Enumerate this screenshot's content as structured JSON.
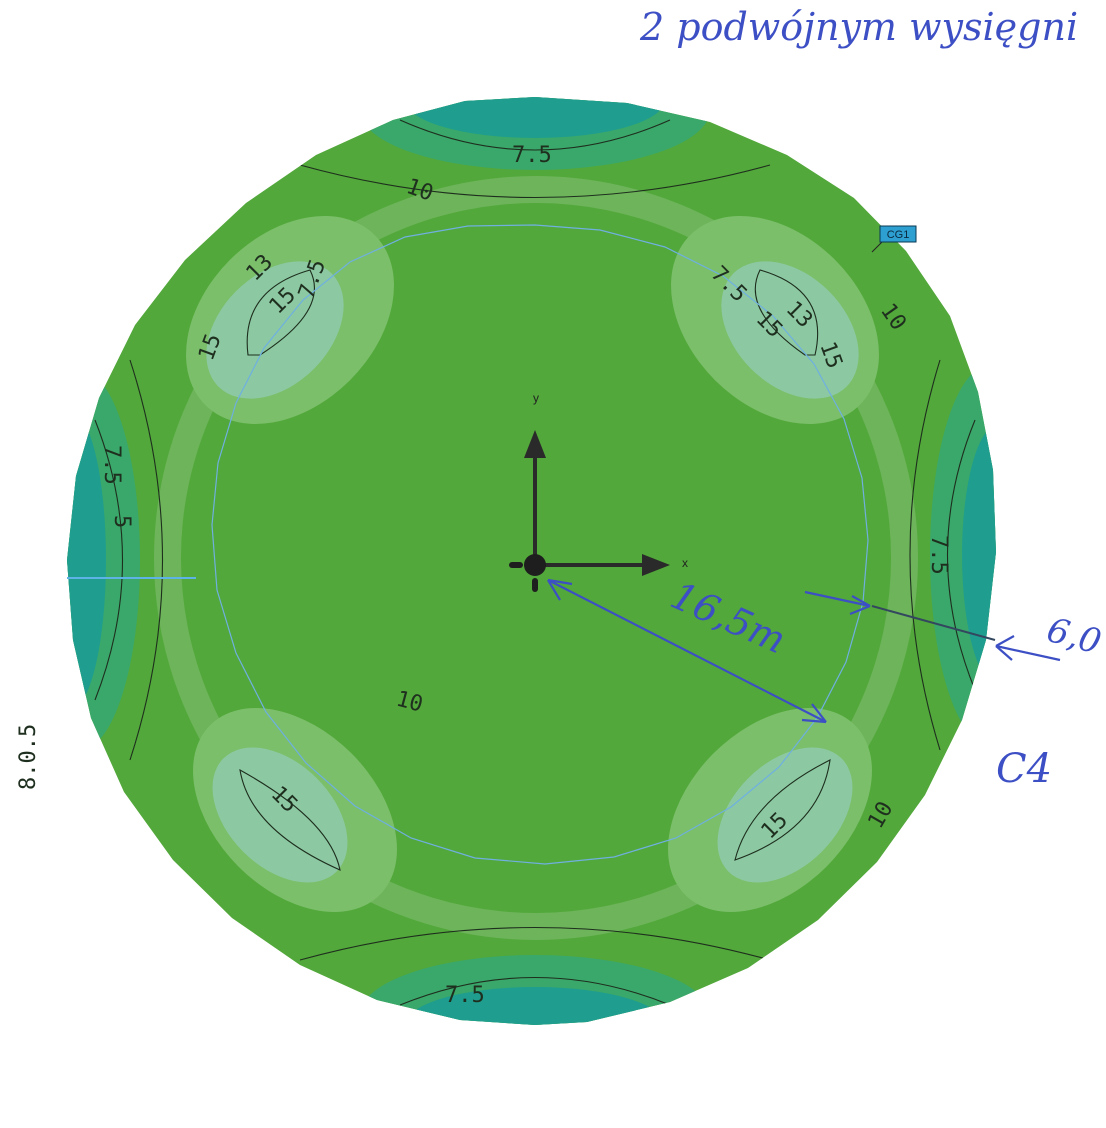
{
  "handwriting": {
    "header": "2 podwójnym wysięgni",
    "radius": "16,5m",
    "thickness": "6,0",
    "case": "C4"
  },
  "tag": {
    "label": "CG1"
  },
  "axes": {
    "x": "x",
    "y": "y"
  },
  "contours": {
    "top": {
      "l75": "7.5",
      "l10": "10"
    },
    "bottom": {
      "l75": "7.5",
      "l10": "10"
    },
    "upper_left": {
      "l13": "13",
      "l15a": "15",
      "l15b": "15",
      "l75": "7.5"
    },
    "upper_right": {
      "l13": "13",
      "l15a": "15",
      "l15b": "15",
      "l75": "7.5",
      "l10": "10"
    },
    "lower_left": {
      "l15": "15"
    },
    "lower_right": {
      "l15": "15",
      "l10": "10"
    },
    "left": {
      "l75": "7.5",
      "l5": "5",
      "l8": "8.0.5"
    },
    "right": {
      "l75": "7.5"
    }
  },
  "colors": {
    "outer_band": "#1f9e8f",
    "band_mid": "#3aa86a",
    "band_main": "#52a83a",
    "band_light": "#7bbf6a",
    "band_peak": "#8cc9a2",
    "ink": "#3d4fc4",
    "tag_fill": "#2d9fd0"
  }
}
